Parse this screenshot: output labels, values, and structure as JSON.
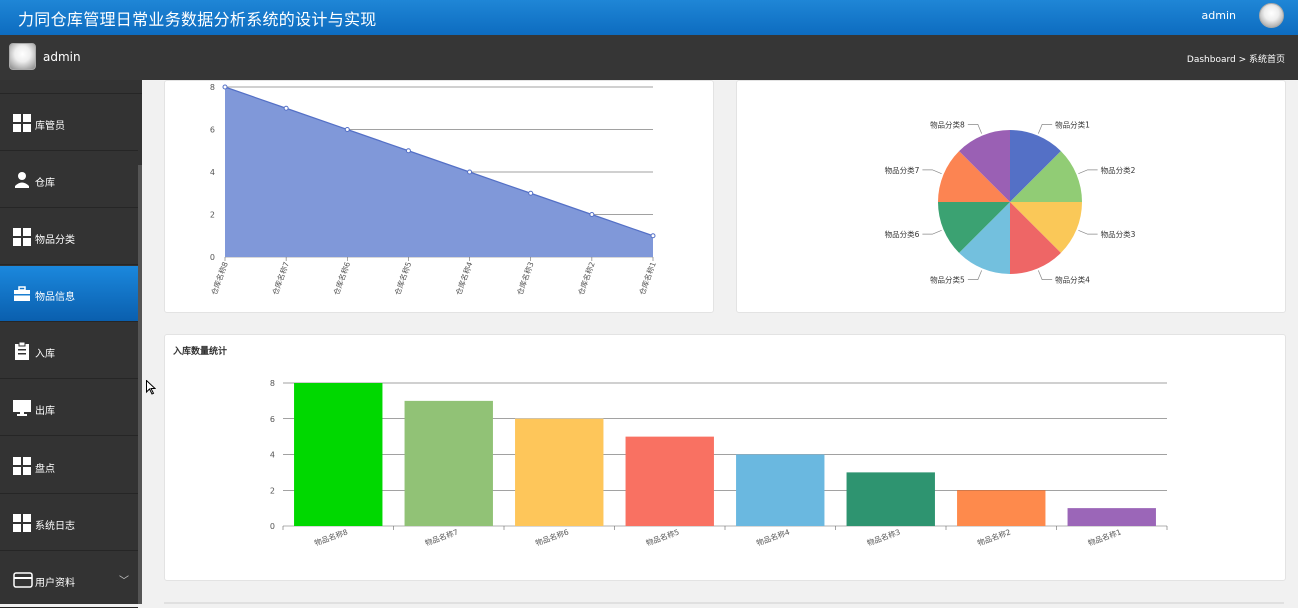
{
  "header": {
    "title": "力同仓库管理日常业务数据分析系统的设计与实现",
    "user": "admin"
  },
  "subheader": {
    "user": "admin",
    "breadcrumb": "Dashboard > 系统首页"
  },
  "sidebar": {
    "items": [
      {
        "label": "库管员",
        "icon": "grid-icon"
      },
      {
        "label": "仓库",
        "icon": "user-icon"
      },
      {
        "label": "物品分类",
        "icon": "grid-icon"
      },
      {
        "label": "物品信息",
        "icon": "briefcase-icon",
        "active": true
      },
      {
        "label": "入库",
        "icon": "clipboard-icon"
      },
      {
        "label": "出库",
        "icon": "monitor-icon"
      },
      {
        "label": "盘点",
        "icon": "grid-icon"
      },
      {
        "label": "系统日志",
        "icon": "grid-icon"
      },
      {
        "label": "用户资料",
        "icon": "card-icon",
        "chevron": "﹀"
      }
    ]
  },
  "chart_data": [
    {
      "type": "area",
      "title": "",
      "categories": [
        "仓库名称8",
        "仓库名称7",
        "仓库名称6",
        "仓库名称5",
        "仓库名称4",
        "仓库名称3",
        "仓库名称2",
        "仓库名称1"
      ],
      "values": [
        8,
        7,
        6,
        5,
        4,
        3,
        2,
        1
      ],
      "ylim": [
        0,
        8
      ],
      "yticks": [
        0,
        2,
        4,
        6,
        8
      ],
      "color": "#8098d9",
      "line_color": "#5470c6",
      "grid": true
    },
    {
      "type": "pie",
      "title": "",
      "categories": [
        "物品分类1",
        "物品分类2",
        "物品分类3",
        "物品分类4",
        "物品分类5",
        "物品分类6",
        "物品分类7",
        "物品分类8"
      ],
      "values": [
        1,
        1,
        1,
        1,
        1,
        1,
        1,
        1
      ],
      "colors": [
        "#5470c6",
        "#91cc75",
        "#fac858",
        "#ee6666",
        "#73c0de",
        "#3ba272",
        "#fc8452",
        "#9a60b4"
      ]
    },
    {
      "type": "bar",
      "title": "入库数量统计",
      "categories": [
        "物品名称8",
        "物品名称7",
        "物品名称6",
        "物品名称5",
        "物品名称4",
        "物品名称3",
        "物品名称2",
        "物品名称1"
      ],
      "values": [
        8,
        7,
        6,
        5,
        4,
        3,
        2,
        1
      ],
      "ylim": [
        0,
        8
      ],
      "yticks": [
        0,
        2,
        4,
        6,
        8
      ],
      "colors": [
        "#00d800",
        "#91c276",
        "#fec65a",
        "#f97162",
        "#6ab8e0",
        "#2e9470",
        "#fe8a4c",
        "#9b66b8"
      ],
      "grid": true
    }
  ]
}
